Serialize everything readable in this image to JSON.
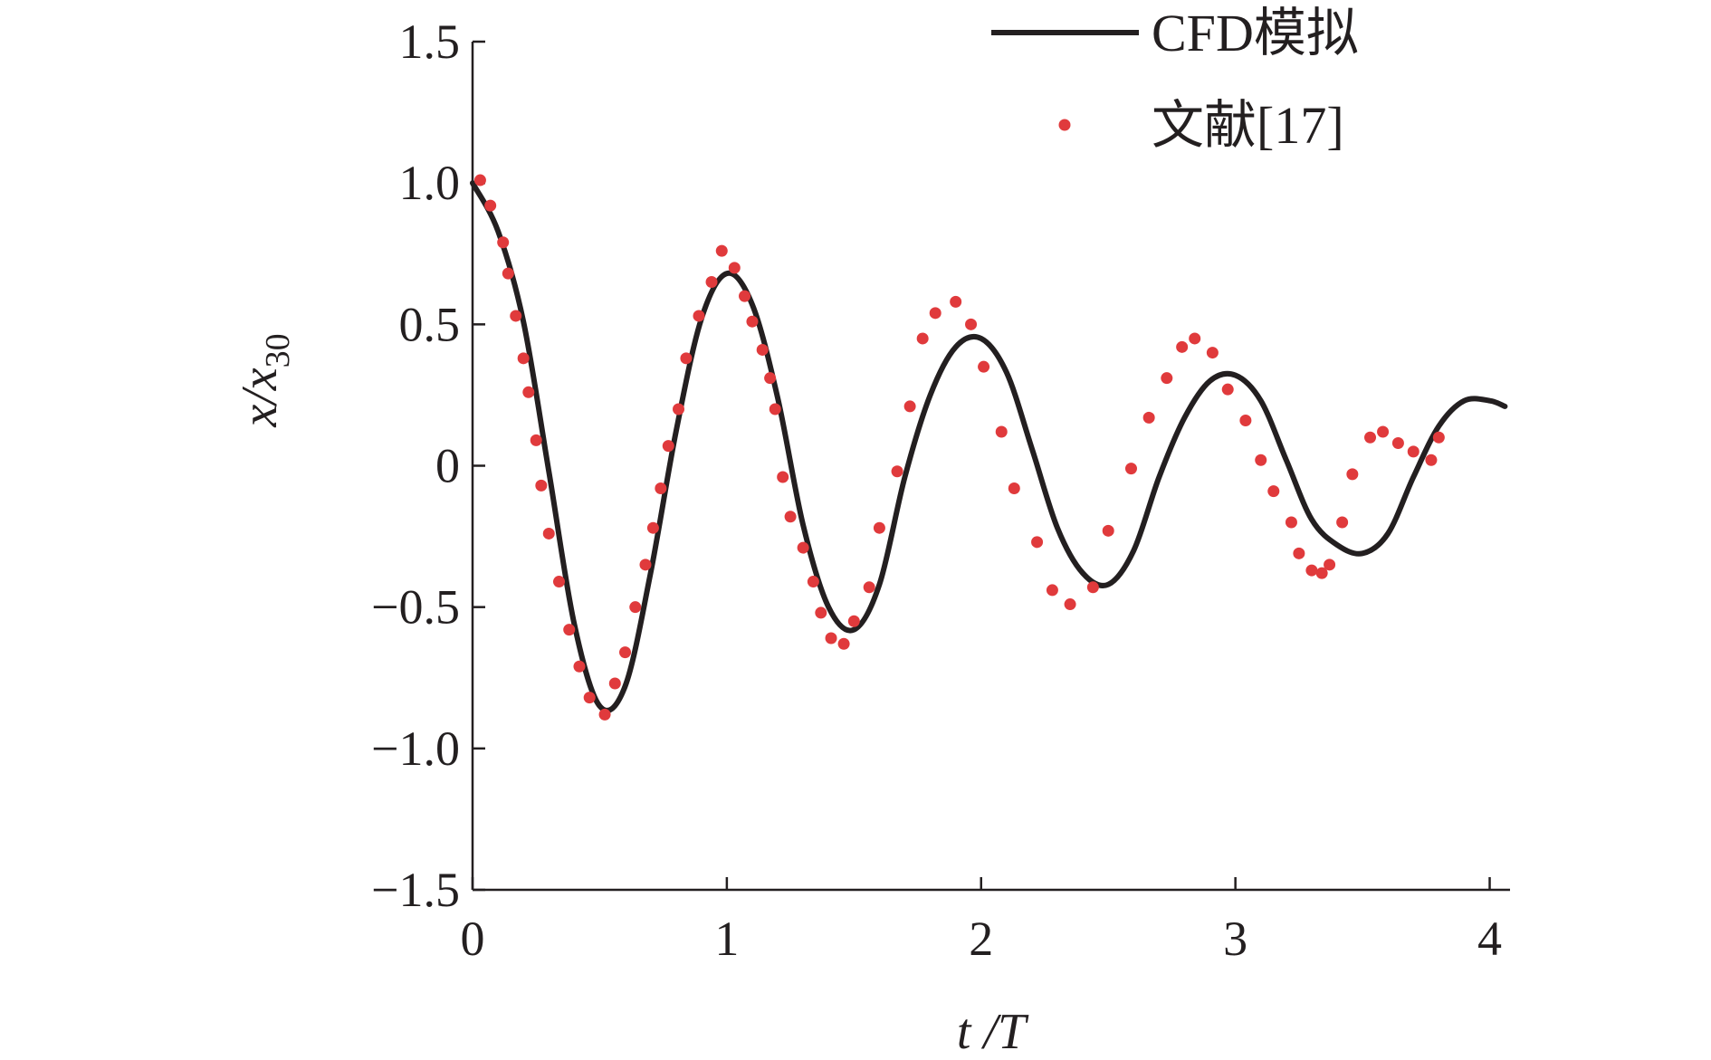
{
  "chart_data": {
    "type": "line",
    "xlabel": "t /T",
    "ylabel": "x/x30",
    "xlim": [
      0,
      4.08
    ],
    "ylim": [
      -1.5,
      1.5
    ],
    "x_ticks": [
      "0",
      "1",
      "2",
      "3",
      "4"
    ],
    "y_ticks": [
      "1.5",
      "1.0",
      "0.5",
      "0",
      "−0.5",
      "−1.0",
      "−1.5"
    ],
    "grid": false,
    "legend_position": "top-right",
    "series": [
      {
        "name": "CFD模拟",
        "kind": "line",
        "color": "#231f20",
        "x": [
          0.0,
          0.1,
          0.2,
          0.3,
          0.4,
          0.5,
          0.6,
          0.7,
          0.8,
          0.9,
          1.0,
          1.1,
          1.2,
          1.3,
          1.4,
          1.5,
          1.6,
          1.7,
          1.8,
          1.9,
          2.0,
          2.1,
          2.2,
          2.3,
          2.4,
          2.5,
          2.6,
          2.7,
          2.8,
          2.9,
          3.0,
          3.1,
          3.2,
          3.3,
          3.4,
          3.5,
          3.6,
          3.7,
          3.8,
          3.9,
          4.0,
          4.06
        ],
        "y": [
          1.0,
          0.83,
          0.51,
          -0.02,
          -0.56,
          -0.85,
          -0.78,
          -0.38,
          0.12,
          0.52,
          0.68,
          0.57,
          0.24,
          -0.21,
          -0.5,
          -0.58,
          -0.42,
          -0.04,
          0.25,
          0.42,
          0.45,
          0.33,
          0.06,
          -0.22,
          -0.38,
          -0.42,
          -0.3,
          -0.04,
          0.17,
          0.3,
          0.32,
          0.23,
          0.02,
          -0.19,
          -0.28,
          -0.31,
          -0.24,
          -0.04,
          0.14,
          0.23,
          0.23,
          0.21
        ]
      },
      {
        "name": "文献[17]",
        "kind": "scatter",
        "color": "#e03a3c",
        "x": [
          0.03,
          0.07,
          0.12,
          0.14,
          0.17,
          0.2,
          0.22,
          0.25,
          0.27,
          0.3,
          0.34,
          0.38,
          0.42,
          0.46,
          0.52,
          0.56,
          0.6,
          0.64,
          0.68,
          0.71,
          0.74,
          0.77,
          0.81,
          0.84,
          0.89,
          0.94,
          0.98,
          1.03,
          1.07,
          1.1,
          1.14,
          1.17,
          1.19,
          1.22,
          1.25,
          1.3,
          1.34,
          1.37,
          1.41,
          1.46,
          1.5,
          1.56,
          1.6,
          1.67,
          1.72,
          1.77,
          1.82,
          1.9,
          1.96,
          2.01,
          2.08,
          2.13,
          2.22,
          2.28,
          2.35,
          2.44,
          2.5,
          2.59,
          2.66,
          2.73,
          2.79,
          2.84,
          2.91,
          2.97,
          3.04,
          3.1,
          3.15,
          3.22,
          3.25,
          3.3,
          3.34,
          3.37,
          3.42,
          3.46,
          3.53,
          3.58,
          3.64,
          3.7,
          3.77,
          3.8
        ],
        "y": [
          1.01,
          0.92,
          0.79,
          0.68,
          0.53,
          0.38,
          0.26,
          0.09,
          -0.07,
          -0.24,
          -0.41,
          -0.58,
          -0.71,
          -0.82,
          -0.88,
          -0.77,
          -0.66,
          -0.5,
          -0.35,
          -0.22,
          -0.08,
          0.07,
          0.2,
          0.38,
          0.53,
          0.65,
          0.76,
          0.7,
          0.6,
          0.51,
          0.41,
          0.31,
          0.2,
          -0.04,
          -0.18,
          -0.29,
          -0.41,
          -0.52,
          -0.61,
          -0.63,
          -0.55,
          -0.43,
          -0.22,
          -0.02,
          0.21,
          0.45,
          0.54,
          0.58,
          0.5,
          0.35,
          0.12,
          -0.08,
          -0.27,
          -0.44,
          -0.49,
          -0.43,
          -0.23,
          -0.01,
          0.17,
          0.31,
          0.42,
          0.45,
          0.4,
          0.27,
          0.16,
          0.02,
          -0.09,
          -0.2,
          -0.31,
          -0.37,
          -0.38,
          -0.35,
          -0.2,
          -0.03,
          0.1,
          0.12,
          0.08,
          0.05,
          0.02,
          0.1
        ]
      }
    ]
  }
}
